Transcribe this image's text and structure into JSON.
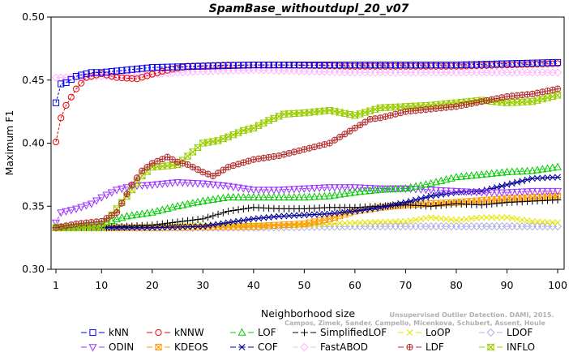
{
  "chart_data": {
    "type": "line",
    "title": "SpamBase_withoutdupl_20_v07",
    "xlabel": "Neighborhood size",
    "ylabel": "Maximum F1",
    "xlim": [
      1,
      100
    ],
    "ylim": [
      0.3,
      0.5
    ],
    "xticks": [
      1,
      10,
      20,
      30,
      40,
      50,
      60,
      70,
      80,
      90,
      100
    ],
    "yticks": [
      0.3,
      0.35,
      0.4,
      0.45,
      0.5
    ],
    "ytick_labels": [
      "0.30",
      "0.35",
      "0.40",
      "0.45",
      "0.50"
    ],
    "grid": false,
    "legend_position": "bottom",
    "watermark": [
      "Unsupervised Outlier Detection. DAMI, 2015.",
      "Campos, Zimek, Sander, Campello, Micenkova, Schubert, Assent, Houle"
    ],
    "series": [
      {
        "name": "kNN",
        "color": "#0000ee",
        "marker": "square",
        "points": [
          [
            1,
            0.432
          ],
          [
            2,
            0.447
          ],
          [
            3,
            0.448
          ],
          [
            5,
            0.453
          ],
          [
            8,
            0.456
          ],
          [
            10,
            0.456
          ],
          [
            15,
            0.458
          ],
          [
            20,
            0.46
          ],
          [
            30,
            0.461
          ],
          [
            40,
            0.462
          ],
          [
            50,
            0.462
          ],
          [
            60,
            0.462
          ],
          [
            70,
            0.462
          ],
          [
            80,
            0.462
          ],
          [
            90,
            0.463
          ],
          [
            100,
            0.464
          ]
        ]
      },
      {
        "name": "kNNW",
        "color": "#e60000",
        "marker": "circle",
        "points": [
          [
            1,
            0.401
          ],
          [
            2,
            0.42
          ],
          [
            3,
            0.43
          ],
          [
            5,
            0.443
          ],
          [
            7,
            0.452
          ],
          [
            10,
            0.455
          ],
          [
            13,
            0.452
          ],
          [
            17,
            0.451
          ],
          [
            22,
            0.457
          ],
          [
            27,
            0.461
          ],
          [
            35,
            0.462
          ],
          [
            45,
            0.462
          ],
          [
            60,
            0.461
          ],
          [
            80,
            0.461
          ],
          [
            100,
            0.463
          ]
        ]
      },
      {
        "name": "LOF",
        "color": "#00cc00",
        "marker": "triangle-up",
        "points": [
          [
            1,
            0.333
          ],
          [
            10,
            0.336
          ],
          [
            15,
            0.342
          ],
          [
            20,
            0.345
          ],
          [
            25,
            0.35
          ],
          [
            30,
            0.354
          ],
          [
            35,
            0.357
          ],
          [
            40,
            0.357
          ],
          [
            45,
            0.357
          ],
          [
            50,
            0.357
          ],
          [
            55,
            0.358
          ],
          [
            60,
            0.361
          ],
          [
            65,
            0.363
          ],
          [
            70,
            0.364
          ],
          [
            75,
            0.368
          ],
          [
            80,
            0.373
          ],
          [
            85,
            0.375
          ],
          [
            90,
            0.377
          ],
          [
            95,
            0.378
          ],
          [
            100,
            0.381
          ]
        ]
      },
      {
        "name": "SimplifiedLOF",
        "color": "#000000",
        "marker": "plus",
        "points": [
          [
            1,
            0.333
          ],
          [
            10,
            0.333
          ],
          [
            20,
            0.335
          ],
          [
            30,
            0.34
          ],
          [
            35,
            0.346
          ],
          [
            40,
            0.349
          ],
          [
            45,
            0.348
          ],
          [
            50,
            0.348
          ],
          [
            55,
            0.349
          ],
          [
            60,
            0.349
          ],
          [
            65,
            0.35
          ],
          [
            70,
            0.351
          ],
          [
            75,
            0.35
          ],
          [
            80,
            0.352
          ],
          [
            85,
            0.351
          ],
          [
            90,
            0.353
          ],
          [
            95,
            0.354
          ],
          [
            100,
            0.355
          ]
        ]
      },
      {
        "name": "LoOP",
        "color": "#e6e600",
        "marker": "x",
        "points": [
          [
            1,
            0.333
          ],
          [
            10,
            0.333
          ],
          [
            20,
            0.334
          ],
          [
            30,
            0.335
          ],
          [
            40,
            0.335
          ],
          [
            50,
            0.335
          ],
          [
            60,
            0.337
          ],
          [
            70,
            0.338
          ],
          [
            75,
            0.341
          ],
          [
            80,
            0.339
          ],
          [
            85,
            0.341
          ],
          [
            90,
            0.341
          ],
          [
            95,
            0.338
          ],
          [
            100,
            0.337
          ]
        ]
      },
      {
        "name": "LDOF",
        "color": "#b0b0e0",
        "marker": "diamond",
        "points": [
          [
            1,
            0.333
          ],
          [
            20,
            0.333
          ],
          [
            40,
            0.333
          ],
          [
            60,
            0.334
          ],
          [
            80,
            0.334
          ],
          [
            100,
            0.334
          ]
        ]
      },
      {
        "name": "ODIN",
        "color": "#9933ff",
        "marker": "triangle-down",
        "points": [
          [
            1,
            0.337
          ],
          [
            2,
            0.345
          ],
          [
            5,
            0.348
          ],
          [
            8,
            0.352
          ],
          [
            10,
            0.357
          ],
          [
            13,
            0.363
          ],
          [
            16,
            0.366
          ],
          [
            20,
            0.367
          ],
          [
            25,
            0.369
          ],
          [
            30,
            0.368
          ],
          [
            35,
            0.366
          ],
          [
            40,
            0.363
          ],
          [
            45,
            0.363
          ],
          [
            50,
            0.364
          ],
          [
            55,
            0.365
          ],
          [
            60,
            0.365
          ],
          [
            65,
            0.364
          ],
          [
            70,
            0.364
          ],
          [
            75,
            0.363
          ],
          [
            80,
            0.362
          ],
          [
            85,
            0.361
          ],
          [
            90,
            0.361
          ],
          [
            95,
            0.362
          ],
          [
            100,
            0.362
          ]
        ]
      },
      {
        "name": "KDEOS",
        "color": "#ff9900",
        "marker": "square-x",
        "points": [
          [
            1,
            0.333
          ],
          [
            20,
            0.333
          ],
          [
            40,
            0.334
          ],
          [
            50,
            0.336
          ],
          [
            55,
            0.34
          ],
          [
            60,
            0.346
          ],
          [
            65,
            0.349
          ],
          [
            70,
            0.351
          ],
          [
            75,
            0.352
          ],
          [
            80,
            0.353
          ],
          [
            90,
            0.356
          ],
          [
            100,
            0.358
          ]
        ]
      },
      {
        "name": "COF",
        "color": "#000099",
        "marker": "asterisk",
        "points": [
          [
            1,
            0.333
          ],
          [
            20,
            0.333
          ],
          [
            30,
            0.334
          ],
          [
            35,
            0.337
          ],
          [
            40,
            0.34
          ],
          [
            45,
            0.342
          ],
          [
            50,
            0.343
          ],
          [
            55,
            0.344
          ],
          [
            60,
            0.346
          ],
          [
            65,
            0.349
          ],
          [
            70,
            0.353
          ],
          [
            75,
            0.358
          ],
          [
            80,
            0.361
          ],
          [
            85,
            0.362
          ],
          [
            90,
            0.367
          ],
          [
            95,
            0.372
          ],
          [
            100,
            0.373
          ]
        ]
      },
      {
        "name": "FastABOD",
        "color": "#ffb3ff",
        "marker": "diamond",
        "points": [
          [
            1,
            0.452
          ],
          [
            3,
            0.452
          ],
          [
            10,
            0.453
          ],
          [
            20,
            0.455
          ],
          [
            30,
            0.457
          ],
          [
            40,
            0.458
          ],
          [
            50,
            0.457
          ],
          [
            60,
            0.456
          ],
          [
            70,
            0.456
          ],
          [
            80,
            0.456
          ],
          [
            90,
            0.456
          ],
          [
            100,
            0.456
          ]
        ]
      },
      {
        "name": "LDF",
        "color": "#b32d2d",
        "marker": "circle-plus",
        "points": [
          [
            1,
            0.333
          ],
          [
            5,
            0.336
          ],
          [
            10,
            0.338
          ],
          [
            13,
            0.345
          ],
          [
            16,
            0.367
          ],
          [
            18,
            0.378
          ],
          [
            20,
            0.384
          ],
          [
            23,
            0.389
          ],
          [
            25,
            0.385
          ],
          [
            27,
            0.383
          ],
          [
            30,
            0.377
          ],
          [
            32,
            0.374
          ],
          [
            35,
            0.381
          ],
          [
            40,
            0.387
          ],
          [
            45,
            0.39
          ],
          [
            50,
            0.395
          ],
          [
            55,
            0.4
          ],
          [
            60,
            0.412
          ],
          [
            63,
            0.419
          ],
          [
            65,
            0.42
          ],
          [
            70,
            0.425
          ],
          [
            75,
            0.427
          ],
          [
            80,
            0.429
          ],
          [
            85,
            0.433
          ],
          [
            90,
            0.437
          ],
          [
            95,
            0.439
          ],
          [
            100,
            0.443
          ]
        ]
      },
      {
        "name": "INFLO",
        "color": "#99cc00",
        "marker": "hourglass",
        "points": [
          [
            1,
            0.333
          ],
          [
            10,
            0.333
          ],
          [
            13,
            0.348
          ],
          [
            16,
            0.363
          ],
          [
            18,
            0.374
          ],
          [
            20,
            0.381
          ],
          [
            23,
            0.382
          ],
          [
            25,
            0.383
          ],
          [
            28,
            0.393
          ],
          [
            30,
            0.4
          ],
          [
            33,
            0.402
          ],
          [
            35,
            0.405
          ],
          [
            38,
            0.41
          ],
          [
            40,
            0.412
          ],
          [
            43,
            0.418
          ],
          [
            46,
            0.423
          ],
          [
            50,
            0.424
          ],
          [
            55,
            0.426
          ],
          [
            60,
            0.422
          ],
          [
            65,
            0.428
          ],
          [
            70,
            0.429
          ],
          [
            75,
            0.43
          ],
          [
            80,
            0.432
          ],
          [
            85,
            0.434
          ],
          [
            90,
            0.432
          ],
          [
            95,
            0.433
          ],
          [
            100,
            0.438
          ]
        ]
      }
    ]
  }
}
